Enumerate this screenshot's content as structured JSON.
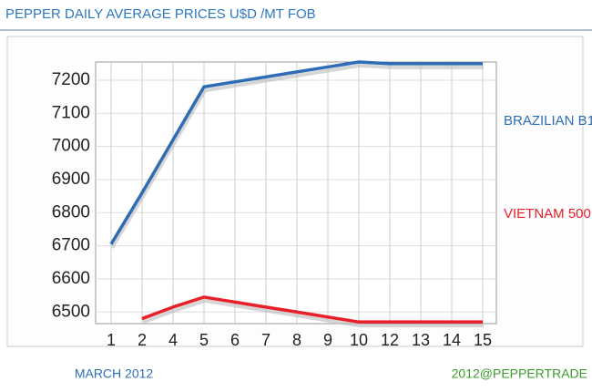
{
  "chart_data": {
    "type": "line",
    "title": "PEPPER DAILY AVERAGE PRICES U$D /MT FOB",
    "xlabel": "MARCH 2012",
    "source": "2012@PEPPERTRADE",
    "categories": [
      "1",
      "2",
      "4",
      "5",
      "6",
      "7",
      "8",
      "9",
      "10",
      "12",
      "13",
      "14",
      "15"
    ],
    "series": [
      {
        "name": "BRAZILIAN B1",
        "color": "#2e6db4",
        "values": [
          6705,
          6860,
          7020,
          7180,
          7195,
          7210,
          7225,
          7240,
          7255,
          7250,
          7250,
          7250,
          7250
        ]
      },
      {
        "name": "VIETNAM 500",
        "color": "#e8202a",
        "values": [
          null,
          6480,
          6515,
          6545,
          6530,
          6515,
          6500,
          6485,
          6470,
          6470,
          6470,
          6470,
          6470
        ]
      }
    ],
    "ylim": [
      6465,
      7255
    ],
    "yticks": [
      6500,
      6600,
      6700,
      6800,
      6900,
      7000,
      7100,
      7200
    ],
    "grid": true
  }
}
